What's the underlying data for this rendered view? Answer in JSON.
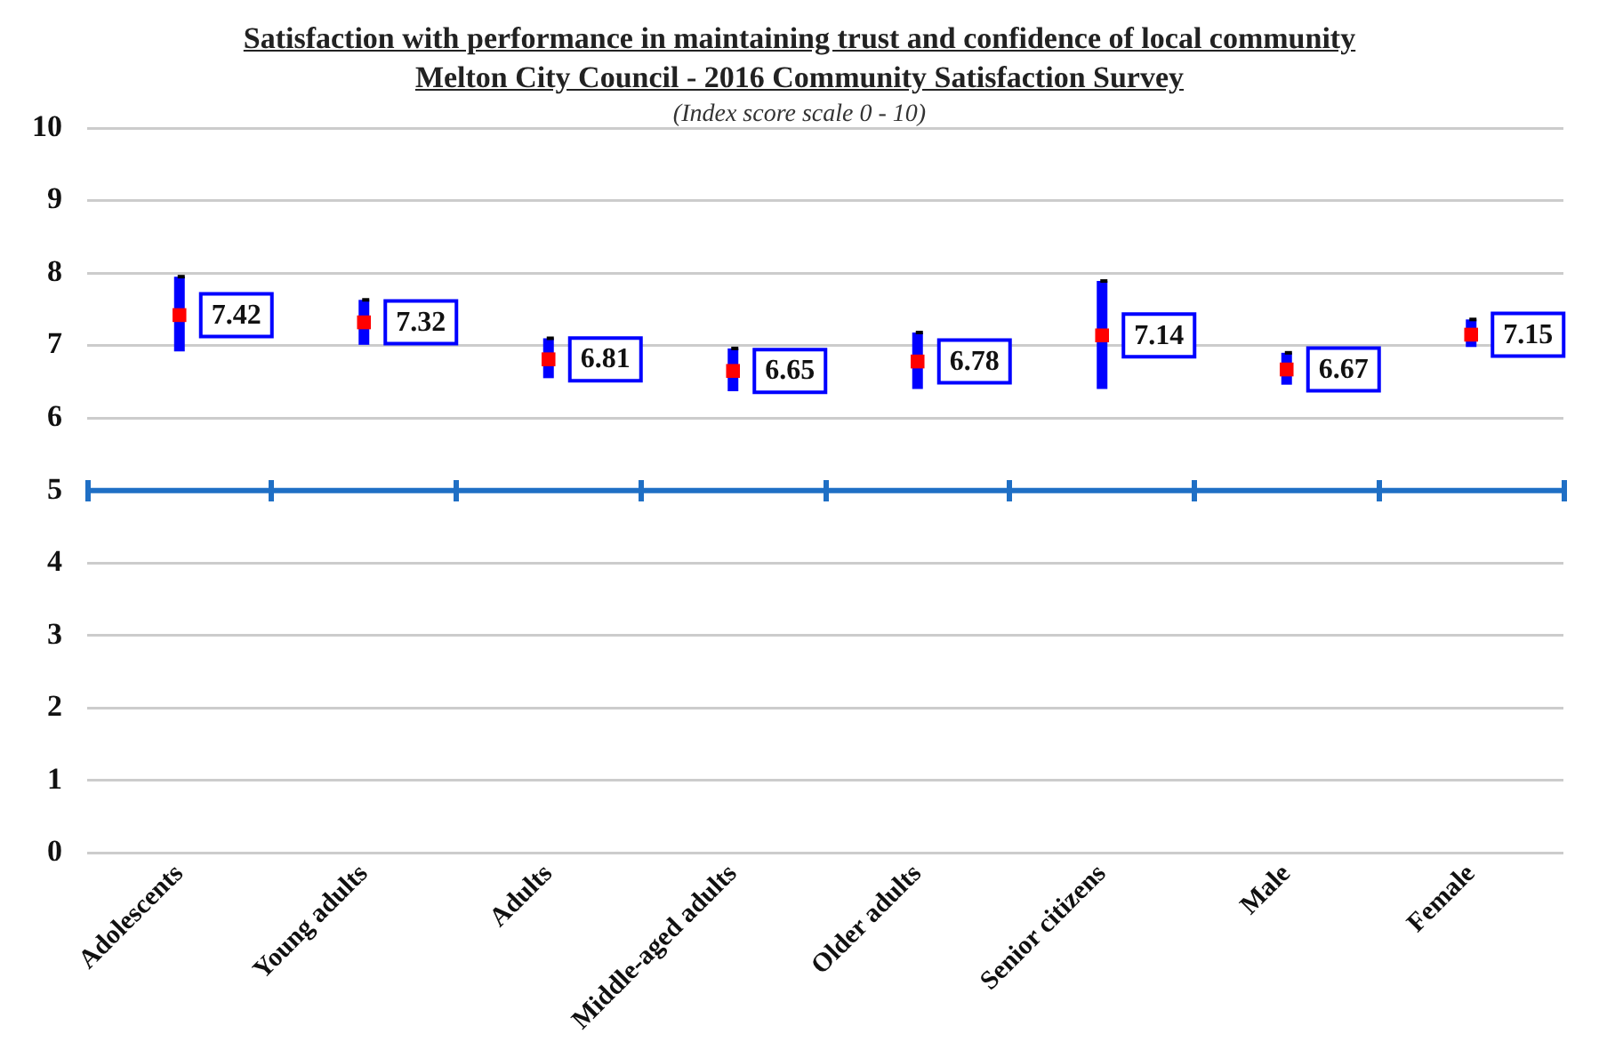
{
  "chart_data": {
    "type": "scatter",
    "title": "Satisfaction with performance in maintaining trust and confidence of local community",
    "subtitle": "Melton City Council - 2016 Community Satisfaction Survey",
    "annotations": [
      "(Index score scale 0 - 10)"
    ],
    "categories": [
      "Adolescents",
      "Young adults",
      "Adults",
      "Middle-aged adults",
      "Older adults",
      "Senior citizens",
      "Male",
      "Female"
    ],
    "values": [
      7.42,
      7.32,
      6.81,
      6.65,
      6.78,
      7.14,
      6.67,
      7.15
    ],
    "errors": [
      [
        6.92,
        7.95
      ],
      [
        7.01,
        7.63
      ],
      [
        6.55,
        7.1
      ],
      [
        6.37,
        6.96
      ],
      [
        6.4,
        7.18
      ],
      [
        6.4,
        7.89
      ],
      [
        6.46,
        6.9
      ],
      [
        6.98,
        7.36
      ]
    ],
    "color": "#ff0000",
    "marker": "square",
    "data_labels": true,
    "ref_lines": [
      {
        "axis": "y",
        "value": 5,
        "color": "#1f6fc5"
      }
    ],
    "ylim": [
      0,
      10
    ],
    "yticks": [
      0,
      1,
      2,
      3,
      4,
      5,
      6,
      7,
      8,
      9,
      10
    ],
    "grid": "y",
    "legend": false
  }
}
